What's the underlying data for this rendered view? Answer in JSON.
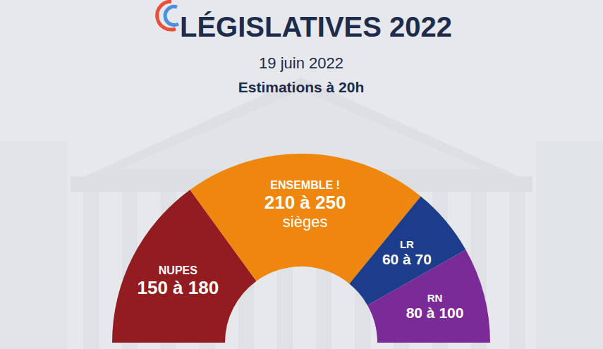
{
  "chart_data": {
    "type": "hemicycle",
    "title": "LÉGISLATIVES 2022",
    "subtitle": "19 juin 2022",
    "annotations": [
      "Estimations à 20h"
    ],
    "categories": [
      "NUPES",
      "ENSEMBLE !",
      "LR",
      "RN"
    ],
    "low": [
      150,
      210,
      60,
      80
    ],
    "high": [
      180,
      250,
      70,
      100
    ],
    "value_labels": [
      "150 à 180",
      "210 à 250",
      "60 à 70",
      "80 à 100"
    ],
    "unit_labels": [
      null,
      "sièges",
      null,
      null
    ],
    "colors": [
      "#921c1f",
      "#ef860d",
      "#1c3d8c",
      "#7b2b98"
    ],
    "data_labels": true
  }
}
